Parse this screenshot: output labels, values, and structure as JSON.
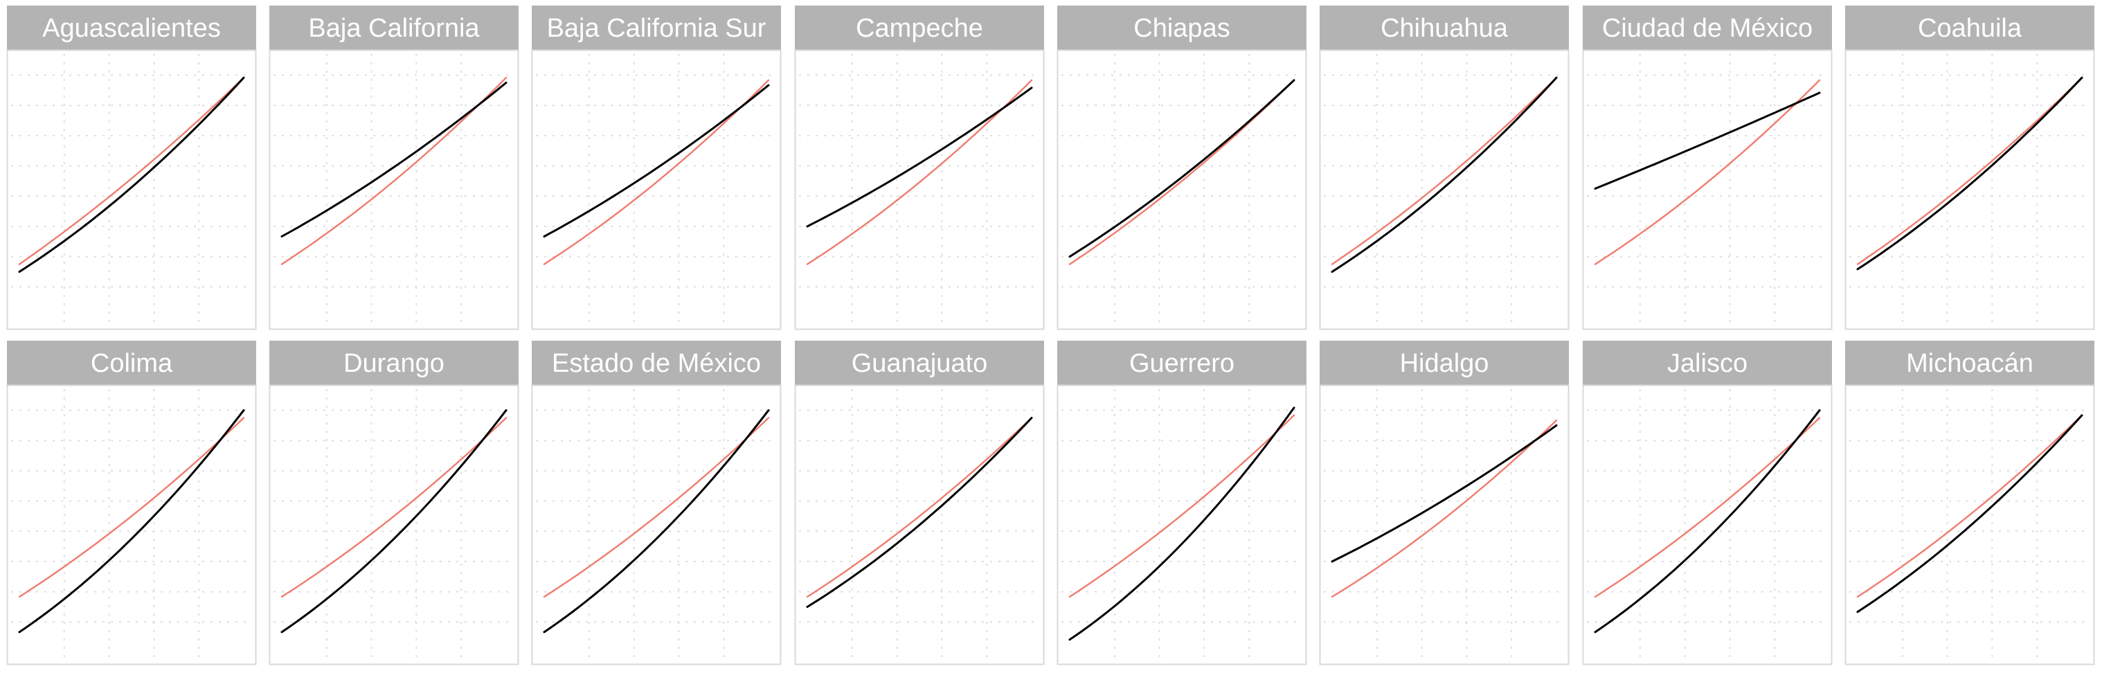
{
  "colors": {
    "background": "#ffffff",
    "strip": "#b3b3b3",
    "strip_text": "#ffffff",
    "panel_border": "#d9d9d9",
    "grid": "#dedede",
    "series_black": "#000000",
    "series_red": "#f07b6e"
  },
  "chart_data": {
    "type": "line",
    "layout": "facet-grid",
    "rows": 2,
    "cols": 8,
    "grid": true,
    "axes_labels_visible": false,
    "x": [
      0,
      1
    ],
    "ylim": [
      0,
      1
    ],
    "panels": [
      {
        "title": "Aguascalientes",
        "series": [
          {
            "color": "black",
            "y": [
              0.18,
              0.95
            ],
            "curvature": 0.1
          },
          {
            "color": "red",
            "y": [
              0.21,
              0.95
            ],
            "curvature": 0.06
          }
        ]
      },
      {
        "title": "Baja California",
        "series": [
          {
            "color": "black",
            "y": [
              0.32,
              0.93
            ],
            "curvature": 0.06
          },
          {
            "color": "red",
            "y": [
              0.21,
              0.95
            ],
            "curvature": 0.08
          }
        ]
      },
      {
        "title": "Baja California Sur",
        "series": [
          {
            "color": "black",
            "y": [
              0.32,
              0.92
            ],
            "curvature": 0.06
          },
          {
            "color": "red",
            "y": [
              0.21,
              0.94
            ],
            "curvature": 0.08
          }
        ]
      },
      {
        "title": "Campeche",
        "series": [
          {
            "color": "black",
            "y": [
              0.36,
              0.91
            ],
            "curvature": 0.05
          },
          {
            "color": "red",
            "y": [
              0.21,
              0.94
            ],
            "curvature": 0.08
          }
        ]
      },
      {
        "title": "Chiapas",
        "series": [
          {
            "color": "black",
            "y": [
              0.24,
              0.94
            ],
            "curvature": 0.07
          },
          {
            "color": "red",
            "y": [
              0.21,
              0.94
            ],
            "curvature": 0.07
          }
        ]
      },
      {
        "title": "Chihuahua",
        "series": [
          {
            "color": "black",
            "y": [
              0.18,
              0.95
            ],
            "curvature": 0.1
          },
          {
            "color": "red",
            "y": [
              0.21,
              0.95
            ],
            "curvature": 0.07
          }
        ]
      },
      {
        "title": "Ciudad de México",
        "series": [
          {
            "color": "black",
            "y": [
              0.51,
              0.89
            ],
            "curvature": 0.01
          },
          {
            "color": "red",
            "y": [
              0.21,
              0.94
            ],
            "curvature": 0.08
          }
        ]
      },
      {
        "title": "Coahuila",
        "series": [
          {
            "color": "black",
            "y": [
              0.19,
              0.95
            ],
            "curvature": 0.09
          },
          {
            "color": "red",
            "y": [
              0.21,
              0.95
            ],
            "curvature": 0.07
          }
        ]
      },
      {
        "title": "Colima",
        "series": [
          {
            "color": "black",
            "y": [
              0.08,
              0.96
            ],
            "curvature": 0.14
          },
          {
            "color": "red",
            "y": [
              0.22,
              0.93
            ],
            "curvature": 0.07
          }
        ]
      },
      {
        "title": "Durango",
        "series": [
          {
            "color": "black",
            "y": [
              0.08,
              0.96
            ],
            "curvature": 0.14
          },
          {
            "color": "red",
            "y": [
              0.22,
              0.93
            ],
            "curvature": 0.07
          }
        ]
      },
      {
        "title": "Estado de México",
        "series": [
          {
            "color": "black",
            "y": [
              0.08,
              0.96
            ],
            "curvature": 0.14
          },
          {
            "color": "red",
            "y": [
              0.22,
              0.93
            ],
            "curvature": 0.07
          }
        ]
      },
      {
        "title": "Guanajuato",
        "series": [
          {
            "color": "black",
            "y": [
              0.18,
              0.93
            ],
            "curvature": 0.1
          },
          {
            "color": "red",
            "y": [
              0.22,
              0.93
            ],
            "curvature": 0.07
          }
        ]
      },
      {
        "title": "Guerrero",
        "series": [
          {
            "color": "black",
            "y": [
              0.05,
              0.97
            ],
            "curvature": 0.16
          },
          {
            "color": "red",
            "y": [
              0.22,
              0.94
            ],
            "curvature": 0.07
          }
        ]
      },
      {
        "title": "Hidalgo",
        "series": [
          {
            "color": "black",
            "y": [
              0.36,
              0.9
            ],
            "curvature": 0.05
          },
          {
            "color": "red",
            "y": [
              0.22,
              0.92
            ],
            "curvature": 0.08
          }
        ]
      },
      {
        "title": "Jalisco",
        "series": [
          {
            "color": "black",
            "y": [
              0.08,
              0.96
            ],
            "curvature": 0.14
          },
          {
            "color": "red",
            "y": [
              0.22,
              0.93
            ],
            "curvature": 0.07
          }
        ]
      },
      {
        "title": "Michoacán",
        "series": [
          {
            "color": "black",
            "y": [
              0.16,
              0.94
            ],
            "curvature": 0.1
          },
          {
            "color": "red",
            "y": [
              0.22,
              0.94
            ],
            "curvature": 0.07
          }
        ]
      }
    ]
  }
}
